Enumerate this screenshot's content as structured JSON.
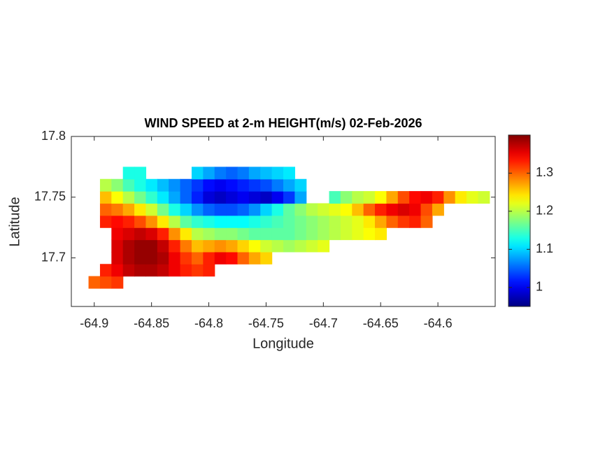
{
  "chart_data": {
    "type": "heatmap",
    "title": "WIND SPEED at 2-m HEIGHT(m/s) 02-Feb-2026",
    "x_label": "Longitude",
    "y_label": "Latitude",
    "xlim": [
      -64.92,
      -64.55
    ],
    "ylim": [
      17.66,
      17.8
    ],
    "xticks": [
      -64.9,
      -64.85,
      -64.8,
      -64.75,
      -64.7,
      -64.65,
      -64.6
    ],
    "yticks": [
      17.7,
      17.75,
      17.8
    ],
    "colormap": "jet",
    "clim": [
      0.95,
      1.4
    ],
    "colorbar_ticks": [
      1,
      1.1,
      1.2,
      1.3
    ],
    "x": [
      -64.9,
      -64.89,
      -64.88,
      -64.87,
      -64.86,
      -64.85,
      -64.84,
      -64.83,
      -64.82,
      -64.81,
      -64.8,
      -64.79,
      -64.78,
      -64.77,
      -64.76,
      -64.75,
      -64.74,
      -64.73,
      -64.72,
      -64.71,
      -64.7,
      -64.69,
      -64.68,
      -64.67,
      -64.66,
      -64.65,
      -64.64,
      -64.63,
      -64.62,
      -64.61,
      -64.6,
      -64.59,
      -64.58,
      -64.57,
      -64.56
    ],
    "y": [
      17.68,
      17.69,
      17.7,
      17.71,
      17.72,
      17.73,
      17.74,
      17.75,
      17.76,
      17.77
    ],
    "z": [
      [
        1.3,
        1.31,
        1.32,
        null,
        null,
        null,
        null,
        null,
        null,
        null,
        null,
        null,
        null,
        null,
        null,
        null,
        null,
        null,
        null,
        null,
        null,
        null,
        null,
        null,
        null,
        null,
        null,
        null,
        null,
        null,
        null,
        null,
        null,
        null,
        null
      ],
      [
        null,
        1.33,
        1.35,
        1.37,
        1.38,
        1.38,
        1.37,
        1.35,
        1.33,
        1.32,
        1.33,
        null,
        null,
        null,
        null,
        null,
        null,
        null,
        null,
        null,
        null,
        null,
        null,
        null,
        null,
        null,
        null,
        null,
        null,
        null,
        null,
        null,
        null,
        null,
        null
      ],
      [
        null,
        null,
        1.36,
        1.38,
        1.39,
        1.39,
        1.38,
        1.35,
        1.32,
        1.3,
        1.33,
        1.35,
        1.34,
        1.3,
        1.27,
        1.25,
        null,
        null,
        null,
        null,
        null,
        null,
        null,
        null,
        null,
        null,
        null,
        null,
        null,
        null,
        null,
        null,
        null,
        null,
        null
      ],
      [
        null,
        null,
        1.36,
        1.38,
        1.39,
        1.39,
        1.37,
        1.33,
        1.29,
        1.26,
        1.27,
        1.28,
        1.27,
        1.25,
        1.23,
        1.21,
        1.2,
        1.19,
        1.2,
        1.21,
        1.22,
        null,
        null,
        null,
        null,
        null,
        null,
        null,
        null,
        null,
        null,
        null,
        null,
        null,
        null
      ],
      [
        null,
        null,
        1.35,
        1.36,
        1.37,
        1.36,
        1.33,
        1.28,
        1.24,
        1.2,
        1.19,
        1.18,
        1.18,
        1.17,
        1.16,
        1.16,
        1.16,
        1.16,
        1.17,
        1.18,
        1.19,
        1.2,
        1.21,
        1.22,
        1.23,
        1.24,
        null,
        null,
        null,
        null,
        null,
        null,
        null,
        null,
        null
      ],
      [
        null,
        1.33,
        1.34,
        1.33,
        1.31,
        1.28,
        1.24,
        1.2,
        1.16,
        1.14,
        1.13,
        1.12,
        1.12,
        1.12,
        1.13,
        1.14,
        1.15,
        1.16,
        1.17,
        1.18,
        1.19,
        1.2,
        1.21,
        1.22,
        1.24,
        1.27,
        1.3,
        1.32,
        1.33,
        1.3,
        null,
        null,
        null,
        null,
        null
      ],
      [
        null,
        1.3,
        1.29,
        1.27,
        1.24,
        1.21,
        1.17,
        1.13,
        1.1,
        1.07,
        1.05,
        1.04,
        1.04,
        1.05,
        1.07,
        1.1,
        1.13,
        1.16,
        1.18,
        1.2,
        1.21,
        1.22,
        1.23,
        1.26,
        1.3,
        1.33,
        1.35,
        1.36,
        1.35,
        1.31,
        1.27,
        null,
        null,
        null,
        null
      ],
      [
        null,
        1.26,
        1.23,
        1.2,
        1.17,
        1.14,
        1.11,
        1.08,
        1.05,
        1.02,
        0.99,
        0.98,
        0.99,
        1.0,
        0.99,
        0.98,
        1.0,
        1.03,
        1.08,
        null,
        null,
        1.15,
        1.18,
        1.2,
        1.21,
        1.23,
        1.27,
        1.31,
        1.34,
        1.35,
        1.33,
        1.28,
        1.24,
        1.22,
        1.21
      ],
      [
        null,
        1.2,
        1.18,
        1.15,
        1.13,
        1.11,
        1.09,
        1.07,
        1.05,
        1.03,
        1.01,
        1.0,
        1.01,
        1.02,
        1.03,
        1.04,
        1.06,
        1.08,
        1.1,
        null,
        null,
        null,
        null,
        null,
        null,
        null,
        null,
        null,
        null,
        null,
        null,
        null,
        null,
        null,
        null
      ],
      [
        null,
        null,
        null,
        1.13,
        1.13,
        null,
        null,
        null,
        null,
        1.1,
        1.08,
        1.06,
        1.05,
        1.06,
        1.08,
        1.09,
        1.1,
        1.11,
        null,
        null,
        null,
        null,
        null,
        null,
        null,
        null,
        null,
        null,
        null,
        null,
        null,
        null,
        null,
        null,
        null
      ]
    ]
  }
}
